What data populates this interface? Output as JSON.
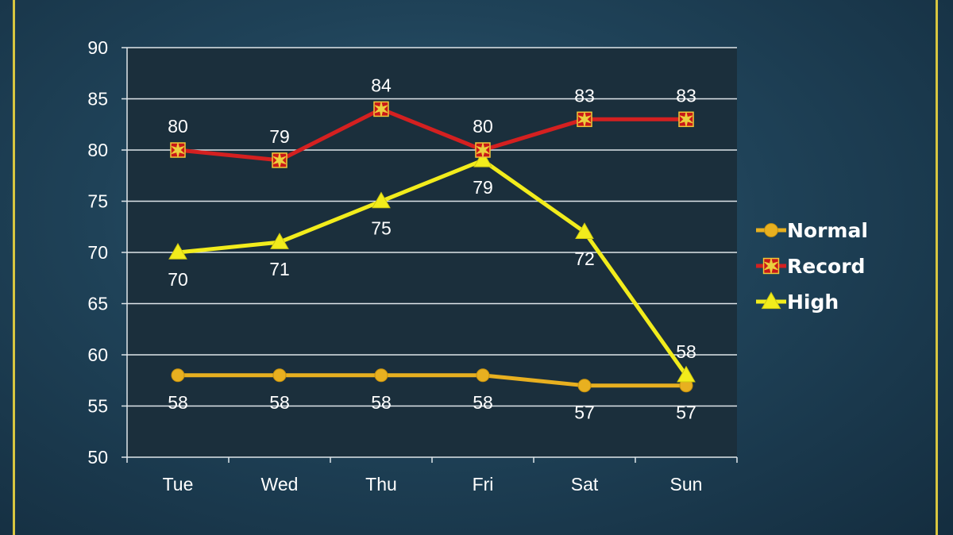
{
  "chart_data": {
    "type": "line",
    "categories": [
      "Tue",
      "Wed",
      "Thu",
      "Fri",
      "Sat",
      "Sun"
    ],
    "ylim": [
      50,
      90
    ],
    "yticks": [
      50,
      55,
      60,
      65,
      70,
      75,
      80,
      85,
      90
    ],
    "grid": true,
    "legend_position": "right",
    "series": [
      {
        "name": "Normal",
        "values": [
          58,
          58,
          58,
          58,
          57,
          57
        ],
        "color": "#e8b020",
        "marker": "circle",
        "label_position": "below"
      },
      {
        "name": "Record",
        "values": [
          80,
          79,
          84,
          80,
          83,
          83
        ],
        "color": "#d42020",
        "marker": "star",
        "label_position": "above"
      },
      {
        "name": "High",
        "values": [
          70,
          71,
          75,
          79,
          72,
          58
        ],
        "color": "#f2ec1c",
        "marker": "triangle",
        "label_position": "below"
      }
    ]
  }
}
